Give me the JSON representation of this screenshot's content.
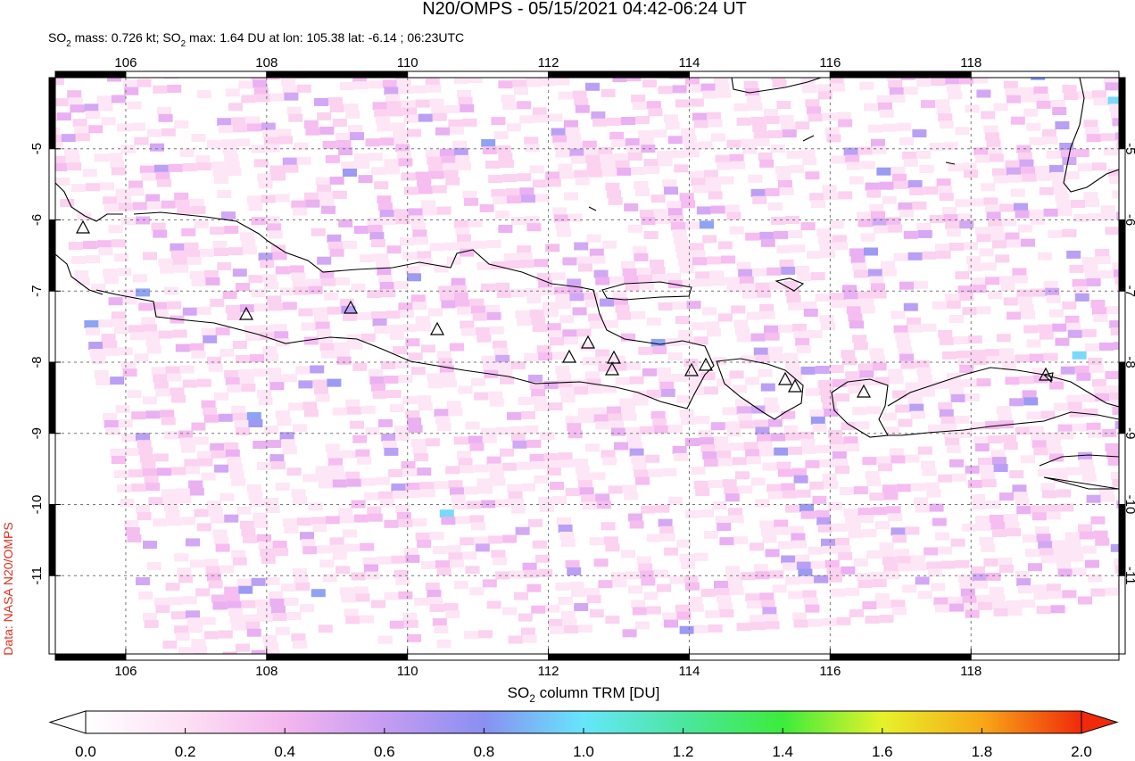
{
  "chart_data": {
    "type": "map",
    "title": "N20/OMPS - 05/15/2021 04:42-06:24 UT",
    "subtitle": [
      "SO",
      "2",
      " mass: 0.726 kt; SO",
      "2",
      " max: 1.64 DU at lon: 105.38 lat: -6.14 ; 06:23UTC"
    ],
    "xlim": [
      105,
      120.1
    ],
    "ylim": [
      -12.1,
      -4.0
    ],
    "xticks": [
      106,
      108,
      110,
      112,
      114,
      116,
      118
    ],
    "yticks": [
      -5,
      -6,
      -7,
      -8,
      -9,
      -10,
      -11
    ],
    "grid": true,
    "colorbar": {
      "label": [
        "SO",
        "2",
        " column TRM [DU]"
      ],
      "clim": [
        0,
        2
      ],
      "ticks": [
        {
          "value": 0,
          "label": "0.0"
        },
        {
          "value": 0.2,
          "label": "0.2"
        },
        {
          "value": 0.4,
          "label": "0.4"
        },
        {
          "value": 0.6,
          "label": "0.6"
        },
        {
          "value": 0.8,
          "label": "0.8"
        },
        {
          "value": 1,
          "label": "1.0"
        },
        {
          "value": 1.2,
          "label": "1.2"
        },
        {
          "value": 1.4,
          "label": "1.4"
        },
        {
          "value": 1.6,
          "label": "1.6"
        },
        {
          "value": 1.8,
          "label": "1.8"
        },
        {
          "value": 2,
          "label": "2.0"
        }
      ]
    },
    "credit": "Data: NASA N20/OMPS"
  }
}
